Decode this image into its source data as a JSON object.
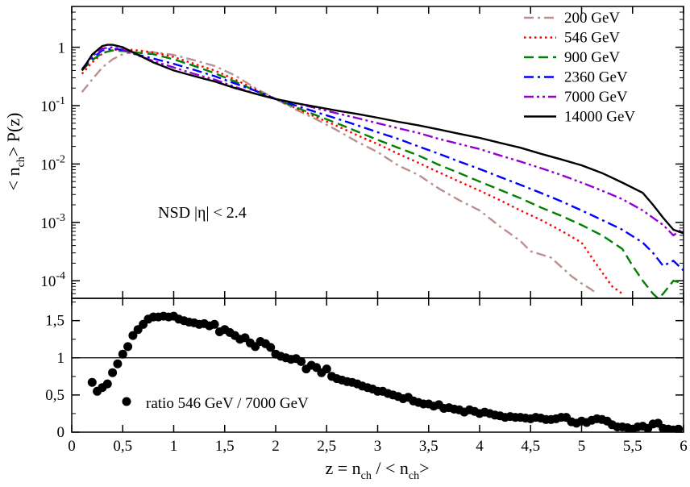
{
  "chart_data": [
    {
      "type": "line",
      "panel": "top",
      "yscale": "log",
      "xlim": [
        0,
        6
      ],
      "ylim": [
        5e-05,
        5
      ],
      "ylabel_parts": [
        "< n",
        "ch",
        "> P(z)"
      ],
      "annotation": "NSD |η| < 2.4",
      "yticks": [
        {
          "value": 1,
          "base": "1",
          "exp": ""
        },
        {
          "value": 0.1,
          "base": "10",
          "exp": "-1"
        },
        {
          "value": 0.01,
          "base": "10",
          "exp": "-2"
        },
        {
          "value": 0.001,
          "base": "10",
          "exp": "-3"
        },
        {
          "value": 0.0001,
          "base": "10",
          "exp": "-4"
        }
      ],
      "legend_position": "top-right",
      "series": [
        {
          "name": "200 GeV",
          "color": "#bc8f8f",
          "dash": "dash-dot",
          "x": [
            0.1,
            0.2,
            0.3,
            0.4,
            0.5,
            0.6,
            0.8,
            1.0,
            1.2,
            1.4,
            1.6,
            1.8,
            2.0,
            2.2,
            2.4,
            2.6,
            2.8,
            3.0,
            3.2,
            3.4,
            3.6,
            3.8,
            4.0,
            4.2,
            4.4,
            4.5,
            4.7,
            4.9,
            5.0,
            5.1,
            5.15
          ],
          "y": [
            0.17,
            0.28,
            0.45,
            0.62,
            0.76,
            0.82,
            0.82,
            0.74,
            0.6,
            0.48,
            0.33,
            0.2,
            0.13,
            0.085,
            0.058,
            0.038,
            0.024,
            0.016,
            0.0095,
            0.0065,
            0.0038,
            0.0024,
            0.0016,
            0.00085,
            0.00048,
            0.00032,
            0.00025,
            0.00012,
            9e-05,
            7e-05,
            6e-05
          ]
        },
        {
          "name": "546 GeV",
          "color": "#ff0000",
          "dash": "dot",
          "x": [
            0.1,
            0.2,
            0.3,
            0.4,
            0.5,
            0.6,
            0.8,
            1.0,
            1.2,
            1.4,
            1.6,
            1.8,
            2.0,
            2.2,
            2.4,
            2.6,
            2.8,
            3.0,
            3.2,
            3.4,
            3.6,
            3.8,
            4.0,
            4.2,
            4.4,
            4.6,
            4.8,
            5.0,
            5.1,
            5.2,
            5.3,
            5.4
          ],
          "y": [
            0.35,
            0.55,
            0.78,
            0.9,
            0.92,
            0.9,
            0.82,
            0.68,
            0.52,
            0.4,
            0.28,
            0.19,
            0.13,
            0.09,
            0.063,
            0.045,
            0.031,
            0.022,
            0.015,
            0.0105,
            0.0072,
            0.005,
            0.0035,
            0.0024,
            0.0016,
            0.0011,
            0.00072,
            0.00045,
            0.00025,
            0.00014,
            8e-05,
            6e-05
          ]
        },
        {
          "name": "900 GeV",
          "color": "#008000",
          "dash": "dash",
          "x": [
            0.1,
            0.2,
            0.3,
            0.4,
            0.5,
            0.6,
            0.8,
            1.0,
            1.2,
            1.4,
            1.6,
            1.8,
            2.0,
            2.2,
            2.4,
            2.6,
            2.8,
            3.0,
            3.2,
            3.4,
            3.6,
            3.8,
            4.0,
            4.2,
            4.4,
            4.6,
            4.8,
            5.0,
            5.2,
            5.4,
            5.5,
            5.6,
            5.7,
            5.75,
            5.8,
            5.9,
            6.0
          ],
          "y": [
            0.4,
            0.6,
            0.8,
            0.88,
            0.86,
            0.82,
            0.76,
            0.62,
            0.48,
            0.36,
            0.26,
            0.18,
            0.13,
            0.093,
            0.068,
            0.05,
            0.036,
            0.026,
            0.019,
            0.014,
            0.0097,
            0.007,
            0.005,
            0.0036,
            0.0026,
            0.0018,
            0.0013,
            0.0009,
            0.0006,
            0.00035,
            0.00018,
            0.0001,
            6e-05,
            5e-05,
            6e-05,
            0.0001,
            9e-05
          ]
        },
        {
          "name": "2360 GeV",
          "color": "#0000ff",
          "dash": "dash-dot",
          "x": [
            0.1,
            0.2,
            0.3,
            0.4,
            0.5,
            0.6,
            0.8,
            1.0,
            1.2,
            1.4,
            1.6,
            1.8,
            2.0,
            2.2,
            2.4,
            2.6,
            2.8,
            3.0,
            3.2,
            3.4,
            3.6,
            3.8,
            4.0,
            4.2,
            4.4,
            4.6,
            4.8,
            5.0,
            5.2,
            5.4,
            5.6,
            5.7,
            5.8,
            5.9,
            6.0
          ],
          "y": [
            0.42,
            0.65,
            0.88,
            0.95,
            0.9,
            0.78,
            0.64,
            0.52,
            0.41,
            0.32,
            0.24,
            0.18,
            0.13,
            0.1,
            0.077,
            0.06,
            0.046,
            0.035,
            0.027,
            0.02,
            0.015,
            0.011,
            0.0082,
            0.006,
            0.0044,
            0.0032,
            0.0023,
            0.0016,
            0.0011,
            0.00075,
            0.00045,
            0.0003,
            0.00018,
            0.00022,
            0.00015
          ]
        },
        {
          "name": "7000 GeV",
          "color": "#9400d3",
          "dash": "dash-dot-dot",
          "x": [
            0.1,
            0.2,
            0.3,
            0.4,
            0.5,
            0.6,
            0.8,
            1.0,
            1.2,
            1.4,
            1.6,
            1.8,
            2.0,
            2.2,
            2.4,
            2.6,
            2.8,
            3.0,
            3.2,
            3.4,
            3.6,
            3.8,
            4.0,
            4.2,
            4.4,
            4.6,
            4.8,
            5.0,
            5.2,
            5.4,
            5.6,
            5.8,
            5.9,
            6.0
          ],
          "y": [
            0.42,
            0.7,
            0.95,
            1.0,
            0.92,
            0.78,
            0.58,
            0.45,
            0.35,
            0.28,
            0.21,
            0.16,
            0.13,
            0.11,
            0.09,
            0.074,
            0.061,
            0.05,
            0.041,
            0.034,
            0.027,
            0.022,
            0.018,
            0.014,
            0.011,
            0.0085,
            0.0065,
            0.0048,
            0.0035,
            0.0025,
            0.0016,
            0.0009,
            0.0006,
            0.0008
          ]
        },
        {
          "name": "14000 GeV",
          "color": "#000000",
          "dash": "solid",
          "x": [
            0.1,
            0.2,
            0.3,
            0.35,
            0.4,
            0.5,
            0.6,
            0.8,
            1.0,
            1.2,
            1.4,
            1.6,
            1.8,
            2.0,
            2.2,
            2.4,
            2.6,
            2.8,
            3.0,
            3.2,
            3.4,
            3.6,
            3.8,
            4.0,
            4.2,
            4.4,
            4.6,
            4.8,
            5.0,
            5.2,
            5.4,
            5.6,
            5.7,
            5.8,
            5.9,
            6.0
          ],
          "y": [
            0.4,
            0.75,
            1.05,
            1.1,
            1.1,
            1.0,
            0.82,
            0.55,
            0.4,
            0.32,
            0.26,
            0.2,
            0.16,
            0.13,
            0.11,
            0.095,
            0.082,
            0.072,
            0.062,
            0.053,
            0.046,
            0.039,
            0.033,
            0.028,
            0.023,
            0.019,
            0.015,
            0.012,
            0.0095,
            0.007,
            0.0048,
            0.0032,
            0.002,
            0.0012,
            0.00075,
            0.00065
          ]
        }
      ]
    },
    {
      "type": "scatter",
      "panel": "bottom",
      "xlim": [
        0,
        6
      ],
      "ylim": [
        0,
        1.8
      ],
      "xlabel_parts": [
        "z = n",
        "ch",
        " / < n",
        "ch",
        ">"
      ],
      "xticks": [
        {
          "value": 0,
          "label": "0"
        },
        {
          "value": 0.5,
          "label": "0,5"
        },
        {
          "value": 1,
          "label": "1"
        },
        {
          "value": 1.5,
          "label": "1,5"
        },
        {
          "value": 2,
          "label": "2"
        },
        {
          "value": 2.5,
          "label": "2,5"
        },
        {
          "value": 3,
          "label": "3"
        },
        {
          "value": 3.5,
          "label": "3,5"
        },
        {
          "value": 4,
          "label": "4"
        },
        {
          "value": 4.5,
          "label": "4,5"
        },
        {
          "value": 5,
          "label": "5"
        },
        {
          "value": 5.5,
          "label": "5,5"
        },
        {
          "value": 6,
          "label": "6"
        }
      ],
      "yticks": [
        {
          "value": 0,
          "label": "0"
        },
        {
          "value": 0.5,
          "label": "0,5"
        },
        {
          "value": 1,
          "label": "1"
        },
        {
          "value": 1.5,
          "label": "1,5"
        }
      ],
      "reference_line": 1,
      "legend": "ratio 546 GeV / 7000 GeV",
      "x": [
        0.2,
        0.25,
        0.3,
        0.35,
        0.4,
        0.45,
        0.5,
        0.55,
        0.6,
        0.65,
        0.7,
        0.75,
        0.8,
        0.85,
        0.9,
        0.95,
        1.0,
        1.05,
        1.1,
        1.15,
        1.2,
        1.25,
        1.3,
        1.35,
        1.4,
        1.45,
        1.5,
        1.55,
        1.6,
        1.65,
        1.7,
        1.75,
        1.8,
        1.85,
        1.9,
        1.95,
        2.0,
        2.05,
        2.1,
        2.15,
        2.2,
        2.25,
        2.3,
        2.35,
        2.4,
        2.45,
        2.5,
        2.55,
        2.6,
        2.65,
        2.7,
        2.75,
        2.8,
        2.85,
        2.9,
        2.95,
        3.0,
        3.05,
        3.1,
        3.15,
        3.2,
        3.25,
        3.3,
        3.35,
        3.4,
        3.45,
        3.5,
        3.55,
        3.6,
        3.65,
        3.7,
        3.75,
        3.8,
        3.85,
        3.9,
        3.95,
        4.0,
        4.05,
        4.1,
        4.15,
        4.2,
        4.25,
        4.3,
        4.35,
        4.4,
        4.45,
        4.5,
        4.55,
        4.6,
        4.65,
        4.7,
        4.75,
        4.8,
        4.85,
        4.9,
        4.95,
        5.0,
        5.05,
        5.1,
        5.15,
        5.2,
        5.25,
        5.3,
        5.35,
        5.4,
        5.45,
        5.5,
        5.55,
        5.6,
        5.65,
        5.7,
        5.75,
        5.8,
        5.85,
        5.9,
        5.95
      ],
      "y": [
        0.67,
        0.55,
        0.6,
        0.65,
        0.8,
        0.92,
        1.05,
        1.15,
        1.3,
        1.38,
        1.45,
        1.52,
        1.55,
        1.55,
        1.56,
        1.55,
        1.56,
        1.52,
        1.5,
        1.48,
        1.47,
        1.45,
        1.46,
        1.43,
        1.45,
        1.35,
        1.38,
        1.34,
        1.3,
        1.25,
        1.27,
        1.2,
        1.15,
        1.22,
        1.19,
        1.14,
        1.05,
        1.02,
        1.0,
        0.98,
        0.99,
        0.95,
        0.85,
        0.9,
        0.87,
        0.8,
        0.85,
        0.75,
        0.72,
        0.7,
        0.68,
        0.67,
        0.65,
        0.62,
        0.6,
        0.58,
        0.55,
        0.55,
        0.52,
        0.5,
        0.48,
        0.45,
        0.47,
        0.42,
        0.4,
        0.38,
        0.38,
        0.35,
        0.37,
        0.32,
        0.33,
        0.31,
        0.3,
        0.27,
        0.3,
        0.28,
        0.25,
        0.27,
        0.25,
        0.23,
        0.22,
        0.2,
        0.21,
        0.2,
        0.2,
        0.19,
        0.18,
        0.2,
        0.19,
        0.17,
        0.17,
        0.18,
        0.2,
        0.2,
        0.14,
        0.12,
        0.15,
        0.13,
        0.16,
        0.18,
        0.17,
        0.15,
        0.1,
        0.07,
        0.07,
        0.06,
        0.04,
        0.07,
        0.08,
        0.05,
        0.11,
        0.12,
        0.05,
        0.04,
        0.03,
        0.04
      ]
    }
  ]
}
